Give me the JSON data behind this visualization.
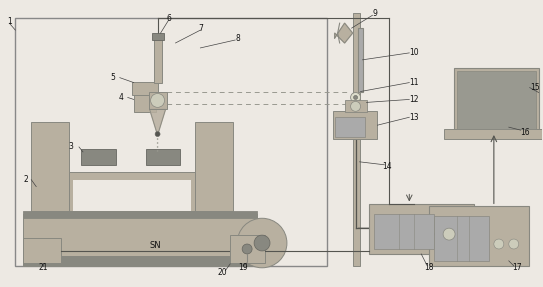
{
  "bg_color": "#ede9e3",
  "border_color": "#888888",
  "component_color": "#b8b0a0",
  "dark_color": "#888880",
  "darker": "#666660",
  "line_color": "#555550",
  "dashed_color": "#999990",
  "label_color": "#111111",
  "white": "#ffffff",
  "gray_screen": "#999990"
}
